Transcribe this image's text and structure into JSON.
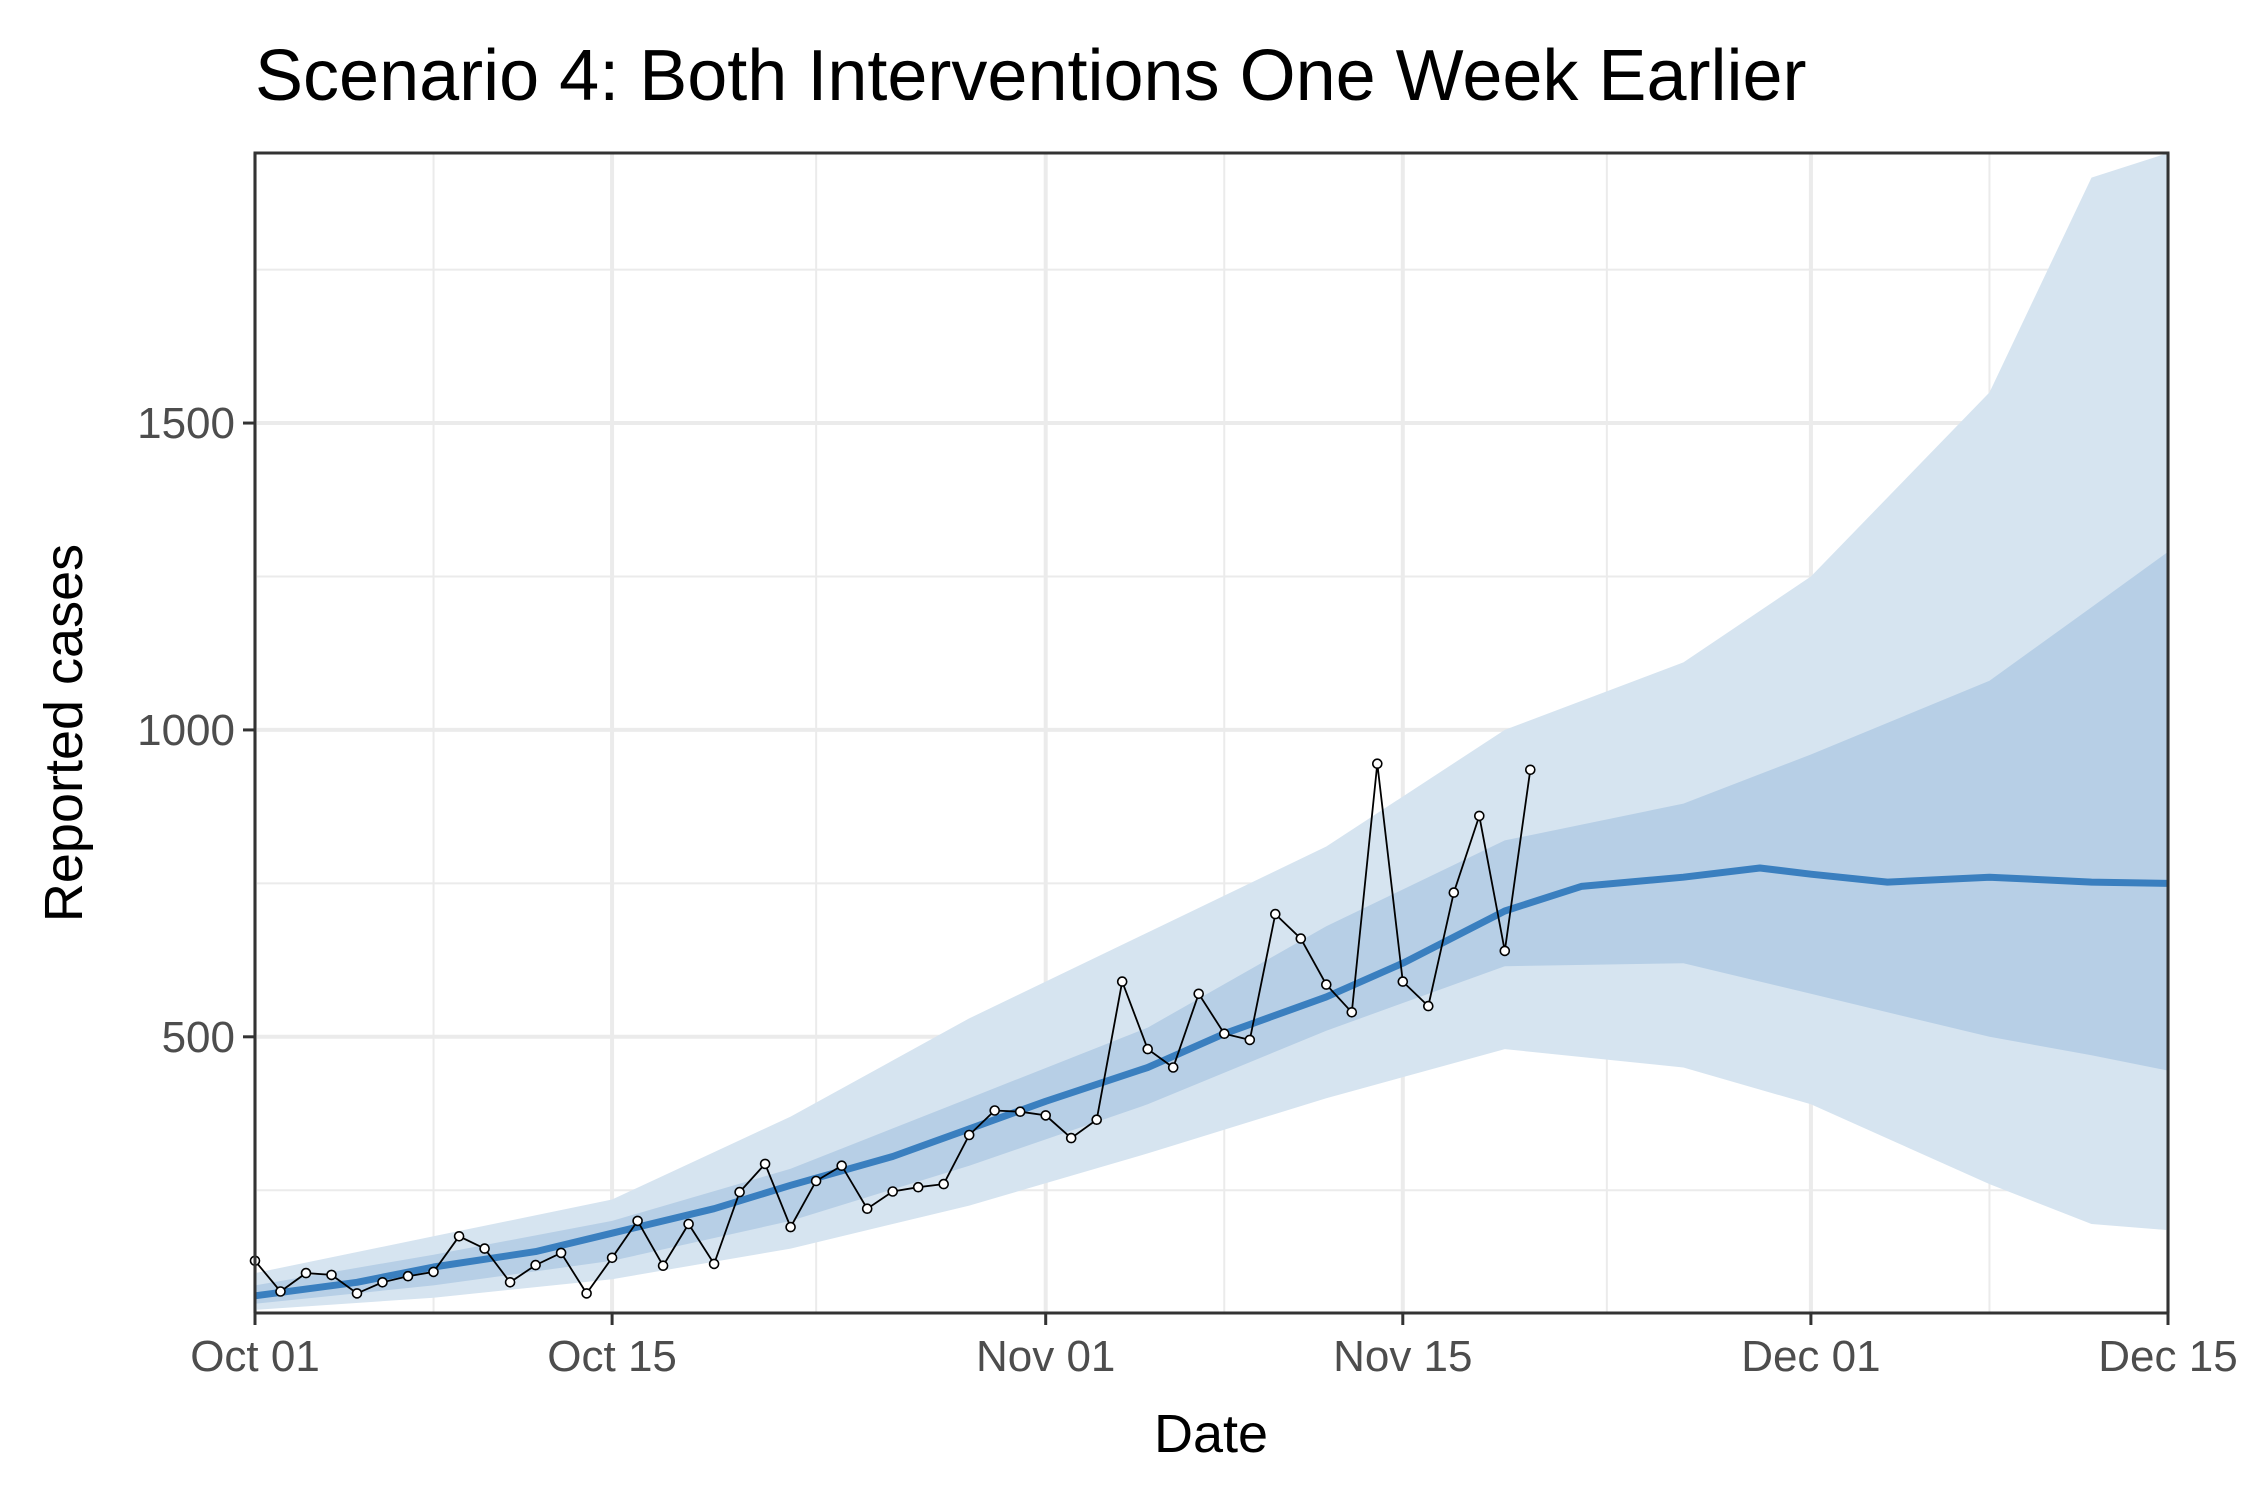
{
  "chart_data": {
    "type": "line",
    "title": "Scenario 4: Both Interventions One Week Earlier",
    "xlabel": "Date",
    "ylabel": "Reported cases",
    "x_start": "2020-10-01",
    "x_end": "2020-12-15",
    "ylim": [
      50,
      1940
    ],
    "x_ticks": [
      {
        "date": "2020-10-01",
        "label": "Oct 01"
      },
      {
        "date": "2020-10-15",
        "label": "Oct 15"
      },
      {
        "date": "2020-11-01",
        "label": "Nov 01"
      },
      {
        "date": "2020-11-15",
        "label": "Nov 15"
      },
      {
        "date": "2020-12-01",
        "label": "Dec 01"
      },
      {
        "date": "2020-12-15",
        "label": "Dec 15"
      }
    ],
    "y_ticks": [
      500,
      1000,
      1500
    ],
    "grid": true,
    "colors": {
      "outer_band": "#d6e4f0",
      "inner_band": "#b7cfe6",
      "median_line": "#3a7fbf",
      "observed_line": "#000000",
      "observed_point_fill": "#ffffff"
    },
    "series": [
      {
        "kind": "band_outer",
        "x": [
          "2020-10-01",
          "2020-10-08",
          "2020-10-15",
          "2020-10-22",
          "2020-10-29",
          "2020-11-05",
          "2020-11-12",
          "2020-11-19",
          "2020-11-26",
          "2020-12-01",
          "2020-12-08",
          "2020-12-12",
          "2020-12-15"
        ],
        "lower": [
          55,
          75,
          105,
          155,
          225,
          310,
          400,
          480,
          450,
          390,
          260,
          195,
          185
        ],
        "upper": [
          115,
          175,
          235,
          370,
          530,
          670,
          810,
          1000,
          1110,
          1250,
          1550,
          1900,
          1940
        ]
      },
      {
        "kind": "band_inner",
        "x": [
          "2020-10-01",
          "2020-10-08",
          "2020-10-15",
          "2020-10-22",
          "2020-10-29",
          "2020-11-05",
          "2020-11-12",
          "2020-11-19",
          "2020-11-26",
          "2020-12-01",
          "2020-12-08",
          "2020-12-12",
          "2020-12-15"
        ],
        "lower": [
          65,
          95,
          135,
          200,
          290,
          390,
          510,
          615,
          620,
          570,
          500,
          470,
          445
        ],
        "upper": [
          95,
          145,
          200,
          285,
          400,
          515,
          680,
          820,
          880,
          960,
          1080,
          1200,
          1290
        ]
      },
      {
        "kind": "median",
        "x": [
          "2020-10-01",
          "2020-10-05",
          "2020-10-08",
          "2020-10-12",
          "2020-10-15",
          "2020-10-19",
          "2020-10-22",
          "2020-10-26",
          "2020-10-29",
          "2020-11-01",
          "2020-11-05",
          "2020-11-08",
          "2020-11-12",
          "2020-11-15",
          "2020-11-19",
          "2020-11-22",
          "2020-11-26",
          "2020-11-29",
          "2020-12-01",
          "2020-12-04",
          "2020-12-08",
          "2020-12-12",
          "2020-12-15"
        ],
        "y": [
          78,
          100,
          125,
          150,
          180,
          220,
          258,
          305,
          350,
          395,
          450,
          505,
          565,
          620,
          705,
          745,
          760,
          775,
          765,
          752,
          760,
          752,
          750
        ]
      },
      {
        "kind": "observed",
        "x": [
          "2020-10-01",
          "2020-10-02",
          "2020-10-03",
          "2020-10-04",
          "2020-10-05",
          "2020-10-06",
          "2020-10-07",
          "2020-10-08",
          "2020-10-09",
          "2020-10-10",
          "2020-10-11",
          "2020-10-12",
          "2020-10-13",
          "2020-10-14",
          "2020-10-15",
          "2020-10-16",
          "2020-10-17",
          "2020-10-18",
          "2020-10-19",
          "2020-10-20",
          "2020-10-21",
          "2020-10-22",
          "2020-10-23",
          "2020-10-24",
          "2020-10-25",
          "2020-10-26",
          "2020-10-27",
          "2020-10-28",
          "2020-10-29",
          "2020-10-30",
          "2020-10-31",
          "2020-11-01",
          "2020-11-02",
          "2020-11-03",
          "2020-11-04",
          "2020-11-05",
          "2020-11-06",
          "2020-11-07",
          "2020-11-08",
          "2020-11-09",
          "2020-11-10",
          "2020-11-11",
          "2020-11-12",
          "2020-11-13",
          "2020-11-14",
          "2020-11-15",
          "2020-11-16",
          "2020-11-17",
          "2020-11-18",
          "2020-11-19",
          "2020-11-20"
        ],
        "y": [
          135,
          85,
          115,
          112,
          82,
          100,
          110,
          117,
          175,
          155,
          100,
          128,
          148,
          82,
          140,
          200,
          127,
          195,
          130,
          247,
          293,
          190,
          265,
          290,
          220,
          248,
          255,
          260,
          340,
          380,
          378,
          372,
          335,
          365,
          590,
          480,
          450,
          570,
          505,
          495,
          700,
          660,
          585,
          540,
          945,
          590,
          550,
          735,
          860,
          640,
          935
        ]
      }
    ]
  }
}
